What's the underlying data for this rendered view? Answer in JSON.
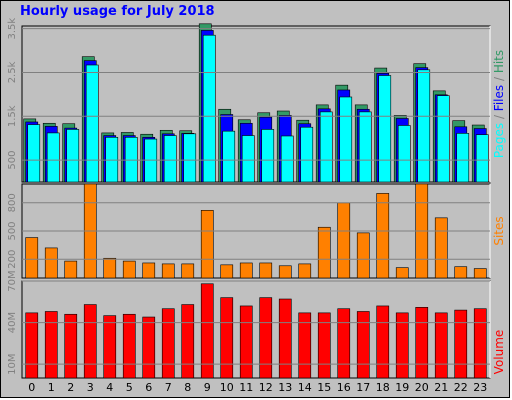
{
  "title": "Hourly usage for July 2018",
  "colors": {
    "pages": "#00ffff",
    "files": "#0000ff",
    "hits": "#339966",
    "sites": "#ff8000",
    "volume": "#ff0000",
    "panel": "#808080",
    "frame": "#c0c0c0"
  },
  "chart_data": [
    {
      "type": "bar",
      "categories": [
        "0",
        "1",
        "2",
        "3",
        "4",
        "5",
        "6",
        "7",
        "8",
        "9",
        "10",
        "11",
        "12",
        "13",
        "14",
        "15",
        "16",
        "17",
        "18",
        "19",
        "20",
        "21",
        "22",
        "23"
      ],
      "yticks": [
        500,
        1500,
        2500,
        "3.5k"
      ],
      "ytick_labels": [
        "500",
        "1.5k",
        "2.5k",
        "3.5k"
      ],
      "ylim": [
        0,
        3560
      ],
      "legend_label": {
        "pages": "Pages",
        "files": "Files",
        "hits": "Hits",
        "sep": " / "
      },
      "series": [
        {
          "name": "Hits",
          "values": [
            1440,
            1340,
            1330,
            2860,
            1120,
            1130,
            1090,
            1180,
            1170,
            3610,
            1660,
            1420,
            1580,
            1620,
            1410,
            1760,
            2210,
            1760,
            2600,
            1520,
            2700,
            2080,
            1400,
            1300
          ]
        },
        {
          "name": "Files",
          "values": [
            1370,
            1270,
            1230,
            2770,
            1060,
            1060,
            1020,
            1100,
            1110,
            3460,
            1540,
            1340,
            1480,
            1520,
            1330,
            1670,
            2100,
            1660,
            2480,
            1450,
            2610,
            1990,
            1260,
            1220
          ]
        },
        {
          "name": "Pages",
          "values": [
            1310,
            1120,
            1200,
            2670,
            1020,
            1020,
            980,
            1060,
            1100,
            3350,
            1160,
            1060,
            1200,
            1050,
            1250,
            1600,
            1940,
            1600,
            2430,
            1290,
            2560,
            1970,
            1110,
            1080
          ]
        }
      ]
    },
    {
      "type": "bar",
      "categories": [
        "0",
        "1",
        "2",
        "3",
        "4",
        "5",
        "6",
        "7",
        "8",
        "9",
        "10",
        "11",
        "12",
        "13",
        "14",
        "15",
        "16",
        "17",
        "18",
        "19",
        "20",
        "21",
        "22",
        "23"
      ],
      "yticks": [
        200,
        500,
        800
      ],
      "ytick_labels": [
        "200",
        "500",
        "800"
      ],
      "ylim": [
        0,
        1000
      ],
      "legend_label": "Sites",
      "series": [
        {
          "name": "Sites",
          "values": [
            430,
            320,
            180,
            1000,
            210,
            180,
            160,
            150,
            150,
            720,
            140,
            160,
            160,
            130,
            150,
            540,
            800,
            480,
            900,
            110,
            1000,
            640,
            120,
            100
          ]
        }
      ]
    },
    {
      "type": "bar",
      "categories": [
        "0",
        "1",
        "2",
        "3",
        "4",
        "5",
        "6",
        "7",
        "8",
        "9",
        "10",
        "11",
        "12",
        "13",
        "14",
        "15",
        "16",
        "17",
        "18",
        "19",
        "20",
        "21",
        "22",
        "23"
      ],
      "yticks": [
        "10M",
        "40M",
        "70M"
      ],
      "ytick_labels": [
        "10M",
        "40M",
        "70M"
      ],
      "ylim": [
        0,
        70
      ],
      "legend_label": "Volume",
      "series": [
        {
          "name": "Volume",
          "values": [
            47,
            48,
            46,
            53,
            45,
            46,
            44,
            50,
            53,
            68,
            58,
            52,
            58,
            57,
            47,
            47,
            50,
            48,
            52,
            47,
            51,
            47,
            49,
            50
          ]
        }
      ]
    }
  ]
}
